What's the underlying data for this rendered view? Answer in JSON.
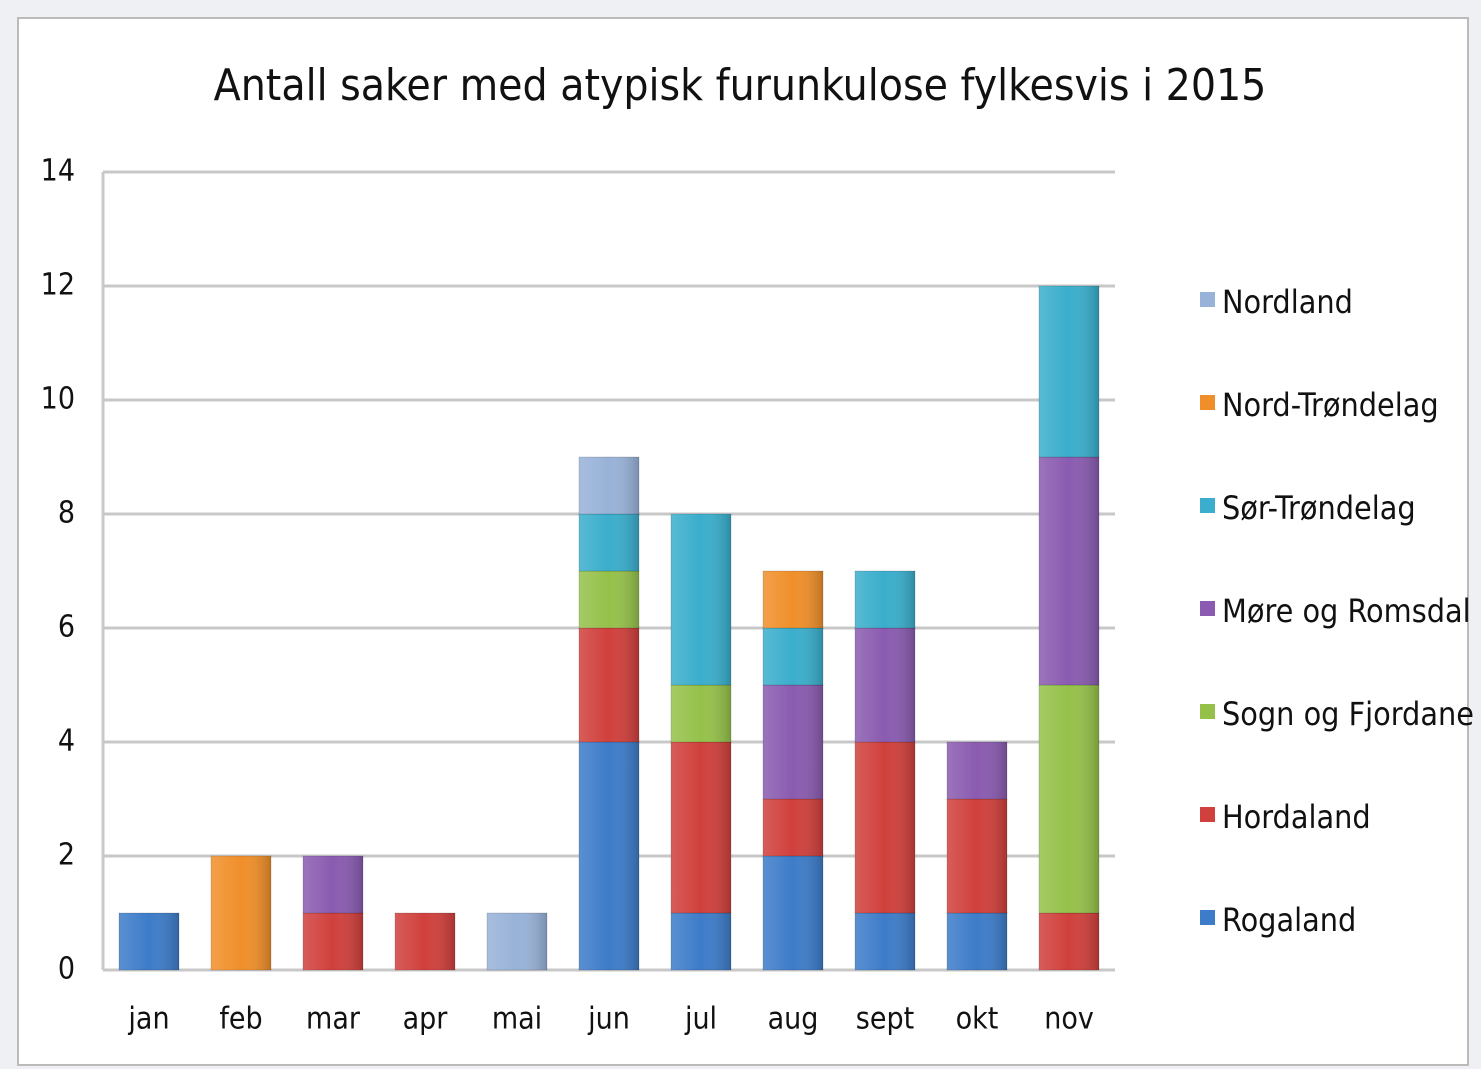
{
  "chart_data": {
    "type": "stacked_bar",
    "title": "Antall saker med atypisk furunkulose fylkesvis i 2015",
    "categories": [
      "jan",
      "feb",
      "mar",
      "apr",
      "mai",
      "jun",
      "jul",
      "aug",
      "sept",
      "okt",
      "nov"
    ],
    "series": [
      {
        "name": "Rogaland",
        "color": "#3d7cc9",
        "values": [
          1,
          0,
          0,
          0,
          0,
          4,
          1,
          2,
          1,
          1,
          0
        ]
      },
      {
        "name": "Hordaland",
        "color": "#d0403c",
        "values": [
          0,
          0,
          1,
          1,
          0,
          2,
          3,
          1,
          3,
          2,
          1
        ]
      },
      {
        "name": "Sogn og Fjordane",
        "color": "#95c14a",
        "values": [
          0,
          0,
          0,
          0,
          0,
          1,
          1,
          0,
          0,
          0,
          4
        ]
      },
      {
        "name": "Møre og Romsdal",
        "color": "#8a5bb0",
        "values": [
          0,
          0,
          1,
          0,
          0,
          0,
          0,
          2,
          2,
          1,
          4
        ]
      },
      {
        "name": "Sør-Trøndelag",
        "color": "#3aaecc",
        "values": [
          0,
          0,
          0,
          0,
          0,
          1,
          3,
          1,
          1,
          0,
          3
        ]
      },
      {
        "name": "Nord-Trøndelag",
        "color": "#f08f2a",
        "values": [
          0,
          2,
          0,
          0,
          0,
          0,
          0,
          1,
          0,
          0,
          0
        ]
      },
      {
        "name": "Nordland",
        "color": "#98b2d8",
        "values": [
          0,
          0,
          0,
          0,
          1,
          1,
          0,
          0,
          0,
          0,
          0
        ]
      }
    ],
    "ylim": [
      0,
      14
    ],
    "yticks": [
      0,
      2,
      4,
      6,
      8,
      10,
      12,
      14
    ],
    "grid": true,
    "legend": "right"
  }
}
